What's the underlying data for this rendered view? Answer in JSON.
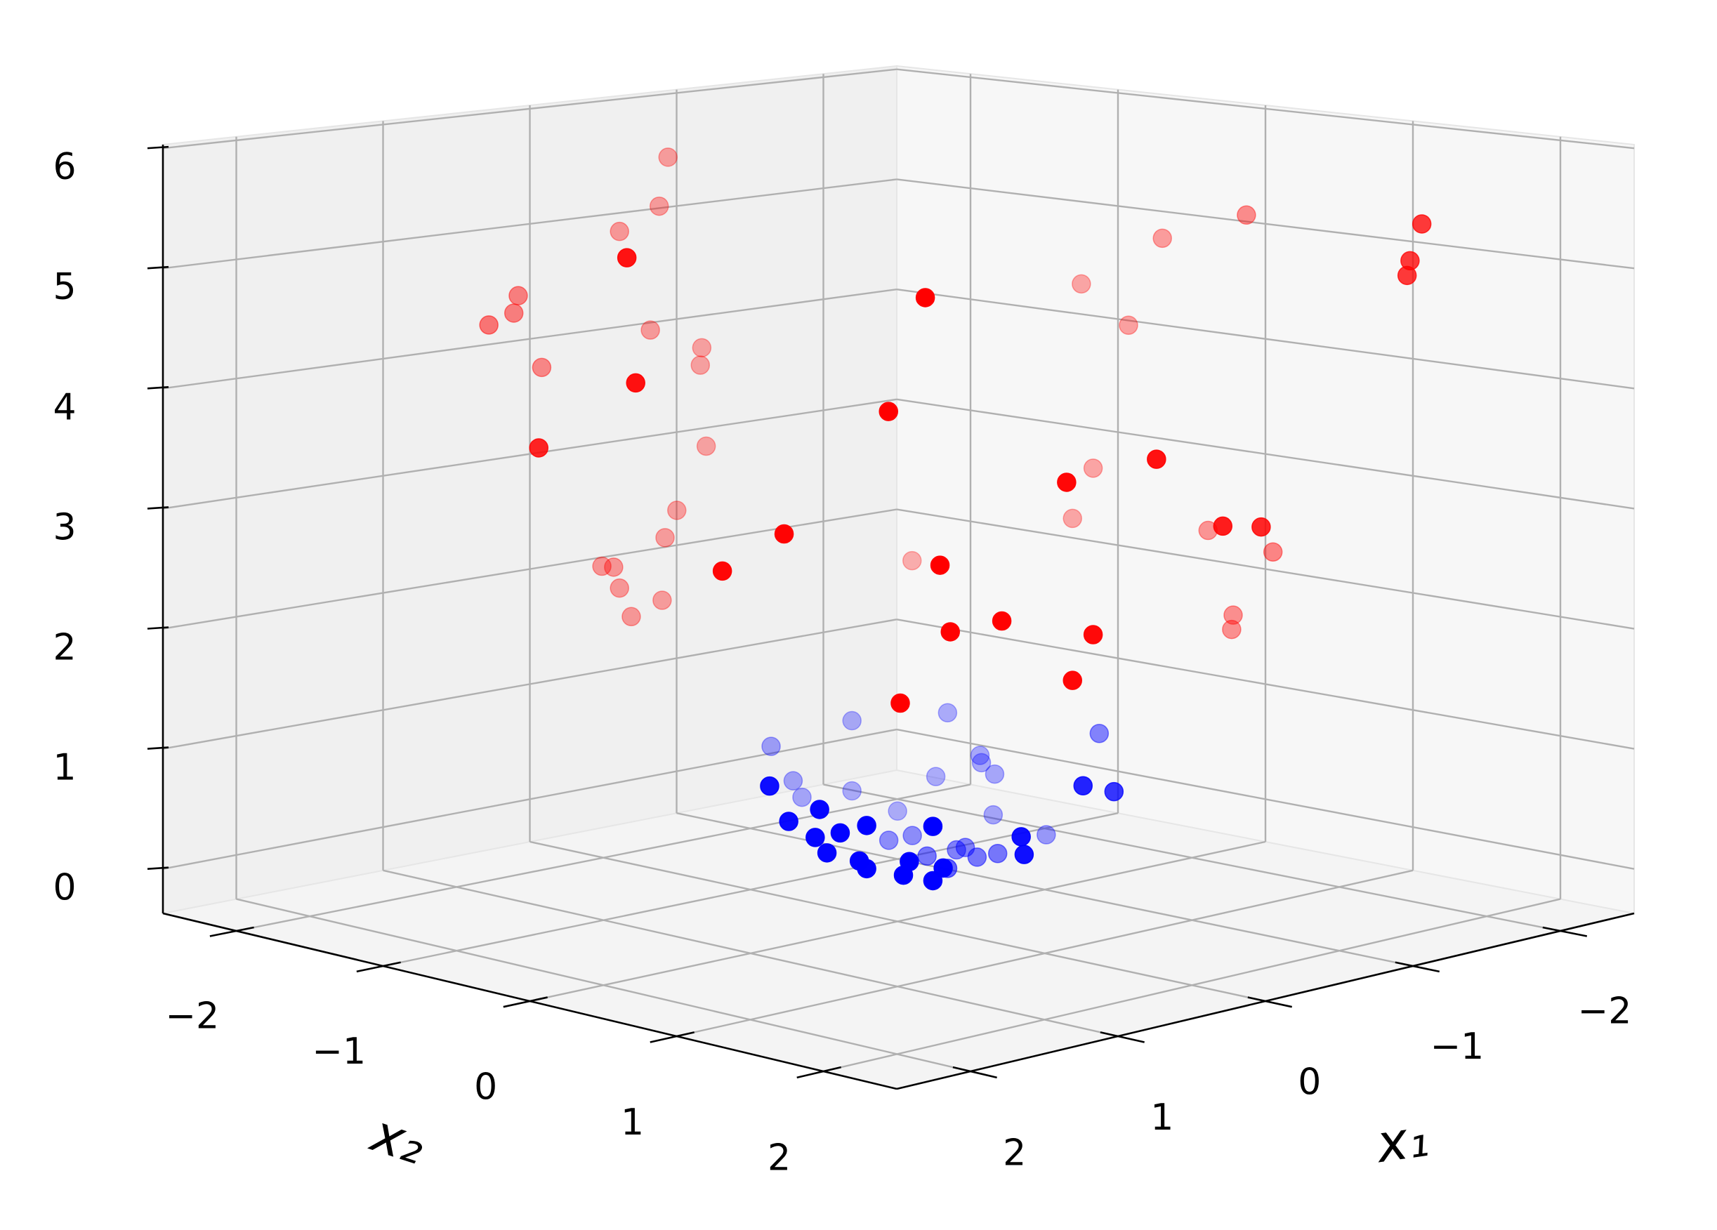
{
  "chart_data": {
    "type": "scatter3d",
    "xlabel": "x₁",
    "ylabel": "x₂",
    "xlim": [
      -2.5,
      2.5
    ],
    "ylim": [
      -2.5,
      2.5
    ],
    "zlim": [
      -0.37,
      6.03
    ],
    "xticks": [
      {
        "value": -2,
        "label": "−2"
      },
      {
        "value": -1,
        "label": "−1"
      },
      0,
      1,
      2
    ],
    "yticks": [
      {
        "value": -2,
        "label": "−2"
      },
      {
        "value": -1,
        "label": "−1"
      },
      0,
      1,
      2
    ],
    "zticks": [
      0,
      1,
      2,
      3,
      4,
      5,
      6
    ],
    "grid": true,
    "depthshade": true,
    "series": [
      {
        "color": "#0000ff",
        "x": [
          -0.62,
          -0.94,
          -1.08,
          -0.24,
          -1.02,
          -1.02,
          1.1,
          -0.35,
          -0.91,
          -1.05,
          -0.15,
          -0.44,
          1.01,
          -0.62,
          -0.4,
          1.07,
          0.89,
          0.66,
          -0.79,
          -1.05,
          1.02,
          0.96,
          0.25,
          -1.11,
          -0.55,
          -0.47,
          0.99,
          0.23,
          -0.63,
          -0.6,
          -0.64,
          0.75,
          0.91,
          -0.4,
          0.89,
          0.62,
          -0.57,
          0.77,
          0.66,
          -0.27
        ],
        "y": [
          -0.93,
          -0.6,
          0.29,
          -1.1,
          -0.46,
          -0.45,
          0.23,
          -1.06,
          -0.65,
          -0.39,
          1.11,
          1.03,
          0.48,
          -0.93,
          -1.05,
          0.33,
          0.68,
          0.9,
          -0.79,
          -0.4,
          0.46,
          0.57,
          1.09,
          -0.1,
          -0.45,
          -0.53,
          0.51,
          1.09,
          -0.17,
          -0.2,
          0.04,
          0.83,
          0.65,
          -0.2,
          0.68,
          0.93,
          -0.03,
          0.81,
          0.9,
          0.07
        ],
        "z": [
          0.93,
          1.0,
          1.0,
          0.76,
          0.65,
          0.59,
          1.08,
          0.45,
          0.45,
          0.5,
          0.99,
          0.85,
          0.93,
          0.33,
          0.3,
          0.81,
          0.82,
          0.81,
          0.15,
          0.15,
          0.7,
          0.75,
          0.67,
          0.04,
          0.09,
          0.05,
          0.58,
          0.52,
          0.04,
          0.02,
          0.04,
          0.53,
          0.53,
          0.02,
          0.47,
          0.47,
          0.01,
          0.42,
          0.37,
          0.02
        ]
      },
      {
        "color": "#ff0000",
        "x": [
          -0.5,
          -0.45,
          -0.22,
          2.1,
          0.53,
          0.57,
          0.83,
          -0.4,
          -0.68,
          -0.67,
          0.32,
          2.1,
          2.09,
          -0.7,
          -0.55,
          1.84,
          -0.49,
          1.97,
          -0.11,
          -0.18,
          -0.22,
          -0.47,
          -0.29,
          1.4,
          1.53,
          -2.1,
          -2.1,
          -1.99,
          -2.06,
          -1.28,
          -1.24,
          -1.23,
          0.33,
          0.81,
          -2.01,
          -1.97,
          -0.09,
          -0.39,
          -2.12,
          -2.06,
          1.35,
          -1.55,
          1.31,
          1.1,
          0.68,
          -2.11,
          -2.12,
          0.78,
          1.49
        ],
        "y": [
          -2.06,
          -2.07,
          -2.11,
          0.26,
          -2.05,
          -2.04,
          -1.95,
          -2.08,
          -2.01,
          -2.01,
          -2.1,
          0.32,
          -0.35,
          -2.0,
          -2.05,
          1.07,
          -2.07,
          0.78,
          -2.12,
          -2.11,
          -2.11,
          -2.07,
          -2.1,
          1.59,
          1.47,
          0.27,
          -0.3,
          -0.74,
          -0.49,
          2.28,
          2.24,
          2.23,
          2.09,
          1.96,
          -0.68,
          -0.78,
          2.12,
          2.08,
          -0.01,
          0.49,
          1.64,
          -1.45,
          1.67,
          1.81,
          2.01,
          0.17,
          0.15,
          1.97,
          1.51
        ],
        "z": [
          5.58,
          5.16,
          4.97,
          5.55,
          4.55,
          4.41,
          4.37,
          4.09,
          3.9,
          3.75,
          3.89,
          4.56,
          3.9,
          3.04,
          2.5,
          3.46,
          2.27,
          3.13,
          2.09,
          2.07,
          1.88,
          1.73,
          1.62,
          5.35,
          4.45,
          5.19,
          4.9,
          4.45,
          4.12,
          5.57,
          5.27,
          5.15,
          3.95,
          3.84,
          2.85,
          2.4,
          3.33,
          3.25,
          2.42,
          2.35,
          3.23,
          1.98,
          2.7,
          2.77,
          2.61,
          1.73,
          1.6,
          2.26,
          2.14
        ]
      }
    ]
  }
}
